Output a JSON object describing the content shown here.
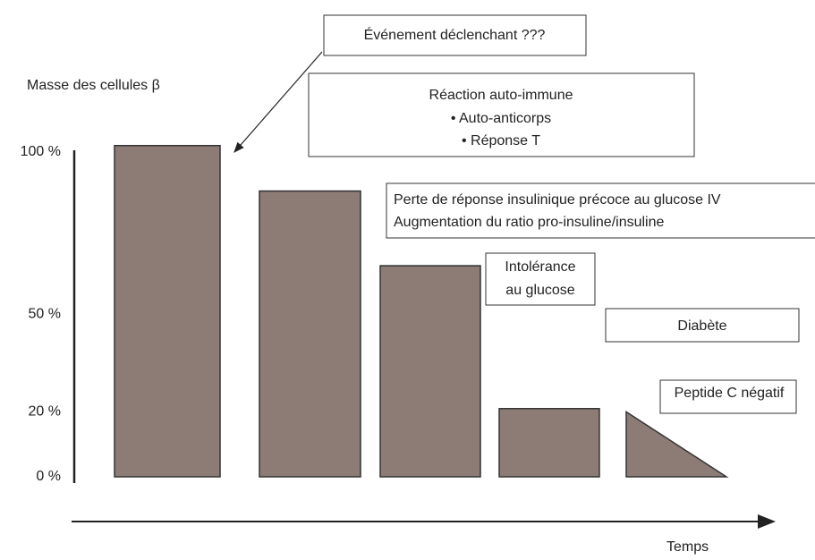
{
  "chart_data": {
    "type": "bar",
    "y_label": "Masse des cellules β",
    "x_label": "Temps",
    "categories": [
      null,
      null,
      null,
      null,
      null
    ],
    "values": [
      102,
      88,
      65,
      21,
      20
    ],
    "bar_shapes": [
      "rect",
      "rect",
      "rect",
      "rect",
      "triangle"
    ],
    "color": "#8d7c76",
    "ylim": [
      0,
      100
    ],
    "yticks": [
      {
        "value": 0,
        "label": "0 %"
      },
      {
        "value": 20,
        "label": "20 %"
      },
      {
        "value": 50,
        "label": "50 %"
      },
      {
        "value": 100,
        "label": "100 %"
      }
    ],
    "grid": false,
    "annotations": [
      {
        "lines": [
          "Événement déclenchant ???"
        ]
      },
      {
        "lines": [
          "Réaction auto-immune",
          "• Auto-anticorps",
          "• Réponse T"
        ]
      },
      {
        "lines": [
          "Perte de réponse insulinique précoce au glucose IV",
          "Augmentation du ratio pro-insuline/insuline"
        ]
      },
      {
        "lines": [
          "Intolérance",
          "au glucose"
        ]
      },
      {
        "lines": [
          "Diabète"
        ]
      },
      {
        "lines": [
          "Peptide C négatif"
        ]
      }
    ]
  }
}
